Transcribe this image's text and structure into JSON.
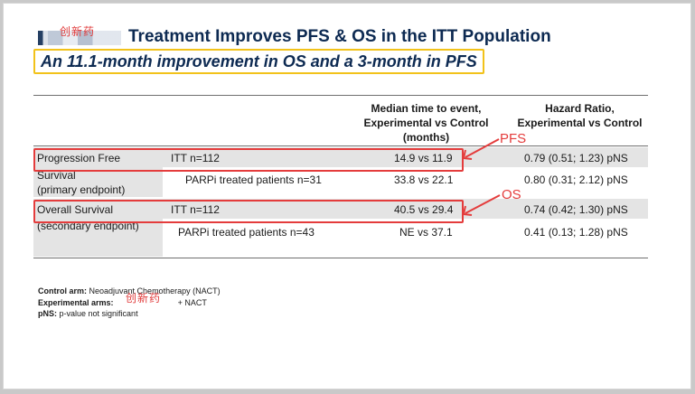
{
  "title": "Treatment Improves PFS & OS in the ITT Population",
  "subtitle": "An 11.1-month improvement in OS and a 3-month in PFS",
  "watermark": "创新药",
  "table": {
    "col_median_header": "Median time to event, Experimental vs Control (months)",
    "col_median_lines": [
      "Median time to event,",
      "Experimental vs Control",
      "(months)"
    ],
    "col_hr_lines": [
      "Hazard Ratio,",
      "Experimental vs Control"
    ],
    "rows": [
      {
        "label_line1": "Progression Free",
        "label_line2": "Survival",
        "label_line3": "(primary endpoint)",
        "pop_itt": "ITT n=112",
        "median_itt": "14.9 vs 11.9",
        "hr_itt": "0.79 (0.51; 1.23) pNS",
        "pop_sub": "PARPi treated patients n=31",
        "median_sub": "33.8 vs 22.1",
        "hr_sub": "0.80 (0.31; 2.12) pNS"
      },
      {
        "label_line1": "Overall Survival",
        "label_line2": "(secondary endpoint)",
        "pop_itt": "ITT n=112",
        "median_itt": "40.5 vs 29.4",
        "hr_itt": "0.74 (0.42; 1.30) pNS",
        "pop_sub": "PARPi treated patients n=43",
        "median_sub": "NE vs 37.1",
        "hr_sub": "0.41 (0.13; 1.28) pNS"
      }
    ]
  },
  "annotations": {
    "pfs": "PFS",
    "os": "OS"
  },
  "colors": {
    "title": "#0d2a52",
    "highlight_border": "#f2c21a",
    "annotation_red": "#e43c3c",
    "band": "#e4e4e4"
  },
  "footnotes": {
    "control_label": "Control arm:",
    "control_text": "Neoadjuvant Chemotherapy (NACT)",
    "exp_label": "Experimental arms:",
    "exp_text": "+ NACT",
    "pns_label": "pNS:",
    "pns_text": "p-value not significant"
  }
}
